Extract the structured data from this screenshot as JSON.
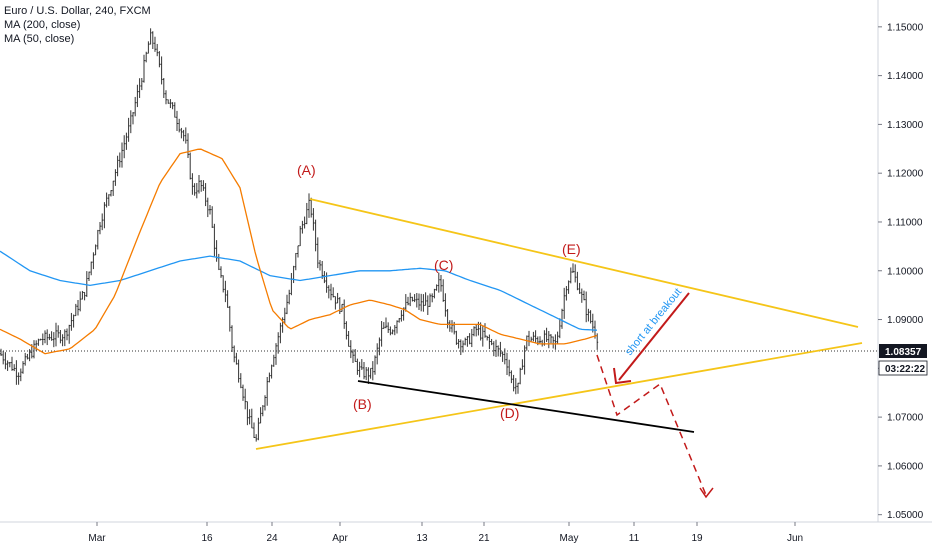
{
  "legend": {
    "title": "Euro / U.S. Dollar, 240, FXCM",
    "ma200": "MA (200, close)",
    "ma50": "MA (50, close)"
  },
  "current_price": "1.08357",
  "countdown": "03:22:22",
  "colors": {
    "ma200": "#2196f3",
    "ma50": "#f57c00",
    "triangle": "#f5c518",
    "support": "#000000",
    "annotation": "#c21a1a",
    "annotation_text": "#2196f3",
    "candles": "#333333"
  },
  "chart_data": {
    "type": "candlestick",
    "y_ticks": [
      "1.15000",
      "1.14000",
      "1.13000",
      "1.12000",
      "1.11000",
      "1.10000",
      "1.09000",
      "1.08000",
      "1.07000",
      "1.06000",
      "1.05000"
    ],
    "x_ticks": [
      "Mar",
      "16",
      "24",
      "Apr",
      "13",
      "21",
      "May",
      "11",
      "19",
      "Jun"
    ],
    "ylim": [
      1.0485,
      1.1555
    ],
    "wave_labels": [
      "(A)",
      "(B)",
      "(C)",
      "(D)",
      "(E)"
    ],
    "annotation": "short at breakout",
    "keypoints": [
      [
        0,
        1.083
      ],
      [
        18,
        1.079
      ],
      [
        40,
        1.086
      ],
      [
        65,
        1.087
      ],
      [
        85,
        1.096
      ],
      [
        100,
        1.11
      ],
      [
        115,
        1.12
      ],
      [
        130,
        1.13
      ],
      [
        142,
        1.14
      ],
      [
        150,
        1.148
      ],
      [
        155,
        1.146
      ],
      [
        165,
        1.136
      ],
      [
        175,
        1.132
      ],
      [
        185,
        1.127
      ],
      [
        193,
        1.116
      ],
      [
        200,
        1.118
      ],
      [
        210,
        1.112
      ],
      [
        218,
        1.1
      ],
      [
        226,
        1.095
      ],
      [
        233,
        1.083
      ],
      [
        240,
        1.078
      ],
      [
        248,
        1.07
      ],
      [
        256,
        1.065
      ],
      [
        262,
        1.072
      ],
      [
        270,
        1.08
      ],
      [
        280,
        1.088
      ],
      [
        290,
        1.096
      ],
      [
        300,
        1.108
      ],
      [
        310,
        1.114
      ],
      [
        318,
        1.102
      ],
      [
        330,
        1.096
      ],
      [
        342,
        1.092
      ],
      [
        352,
        1.082
      ],
      [
        362,
        1.079
      ],
      [
        372,
        1.079
      ],
      [
        382,
        1.088
      ],
      [
        392,
        1.088
      ],
      [
        402,
        1.092
      ],
      [
        412,
        1.094
      ],
      [
        422,
        1.093
      ],
      [
        432,
        1.094
      ],
      [
        440,
        1.098
      ],
      [
        448,
        1.09
      ],
      [
        456,
        1.086
      ],
      [
        466,
        1.085
      ],
      [
        476,
        1.088
      ],
      [
        486,
        1.086
      ],
      [
        496,
        1.084
      ],
      [
        506,
        1.082
      ],
      [
        512,
        1.077
      ],
      [
        518,
        1.076
      ],
      [
        526,
        1.086
      ],
      [
        536,
        1.086
      ],
      [
        546,
        1.086
      ],
      [
        556,
        1.085
      ],
      [
        566,
        1.097
      ],
      [
        572,
        1.1
      ],
      [
        578,
        1.097
      ],
      [
        586,
        1.092
      ],
      [
        592,
        1.089
      ],
      [
        598,
        1.086
      ]
    ],
    "ma50": [
      [
        0,
        1.088
      ],
      [
        20,
        1.086
      ],
      [
        45,
        1.083
      ],
      [
        70,
        1.084
      ],
      [
        95,
        1.088
      ],
      [
        115,
        1.095
      ],
      [
        140,
        1.108
      ],
      [
        160,
        1.118
      ],
      [
        180,
        1.124
      ],
      [
        200,
        1.125
      ],
      [
        222,
        1.123
      ],
      [
        240,
        1.117
      ],
      [
        256,
        1.103
      ],
      [
        272,
        1.092
      ],
      [
        290,
        1.088
      ],
      [
        310,
        1.09
      ],
      [
        330,
        1.091
      ],
      [
        350,
        1.093
      ],
      [
        370,
        1.094
      ],
      [
        390,
        1.093
      ],
      [
        405,
        1.092
      ],
      [
        420,
        1.09
      ],
      [
        440,
        1.089
      ],
      [
        460,
        1.089
      ],
      [
        480,
        1.089
      ],
      [
        500,
        1.087
      ],
      [
        520,
        1.086
      ],
      [
        540,
        1.085
      ],
      [
        565,
        1.085
      ],
      [
        585,
        1.086
      ],
      [
        598,
        1.0868
      ]
    ],
    "ma200": [
      [
        0,
        1.104
      ],
      [
        30,
        1.1
      ],
      [
        60,
        1.098
      ],
      [
        90,
        1.097
      ],
      [
        120,
        1.098
      ],
      [
        150,
        1.1
      ],
      [
        180,
        1.102
      ],
      [
        210,
        1.103
      ],
      [
        240,
        1.102
      ],
      [
        270,
        1.099
      ],
      [
        300,
        1.098
      ],
      [
        330,
        1.099
      ],
      [
        360,
        1.1
      ],
      [
        390,
        1.1
      ],
      [
        420,
        1.1005
      ],
      [
        445,
        1.1
      ],
      [
        470,
        1.098
      ],
      [
        500,
        1.096
      ],
      [
        530,
        1.093
      ],
      [
        560,
        1.09
      ],
      [
        580,
        1.088
      ],
      [
        598,
        1.0878
      ]
    ]
  }
}
